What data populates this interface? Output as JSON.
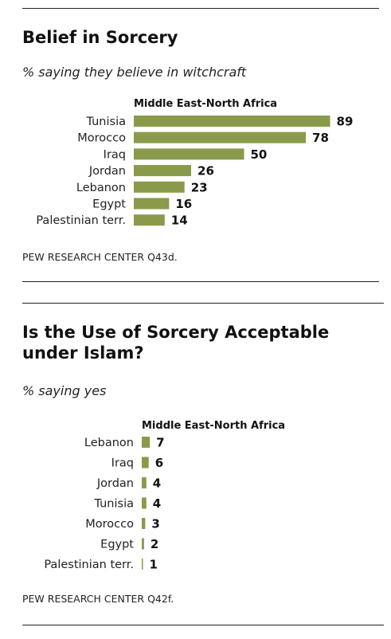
{
  "charts": [
    {
      "title": "Belief in Sorcery",
      "subtitle": "% saying they believe in witchcraft",
      "group_label": "Middle East-North Africa",
      "source": "PEW RESEARCH CENTER Q43d."
    },
    {
      "title": "Is the Use of Sorcery Acceptable under Islam?",
      "subtitle": "% saying yes",
      "group_label": "Middle East-North Africa",
      "source": "PEW RESEARCH CENTER Q42f."
    }
  ],
  "bar_color": "#8a9a4b",
  "chart_data": [
    {
      "type": "bar",
      "orientation": "horizontal",
      "title": "Belief in Sorcery",
      "subtitle": "% saying they believe in witchcraft",
      "categories": [
        "Tunisia",
        "Morocco",
        "Iraq",
        "Jordan",
        "Lebanon",
        "Egypt",
        "Palestinian terr."
      ],
      "values": [
        89,
        78,
        50,
        26,
        23,
        16,
        14
      ],
      "data_labels": [
        "89",
        "78",
        "50",
        "26",
        "23",
        "16",
        "14"
      ],
      "xlim": [
        0,
        100
      ],
      "grid": false,
      "legend": "none"
    },
    {
      "type": "bar",
      "orientation": "horizontal",
      "title": "Is the Use of Sorcery Acceptable under Islam?",
      "subtitle": "% saying yes",
      "categories": [
        "Lebanon",
        "Iraq",
        "Jordan",
        "Tunisia",
        "Morocco",
        "Egypt",
        "Palestinian terr."
      ],
      "values": [
        7,
        6,
        4,
        4,
        3,
        2,
        1
      ],
      "data_labels": [
        "7",
        "6",
        "4",
        "4",
        "3",
        "2",
        "1"
      ],
      "xlim": [
        0,
        100
      ],
      "grid": false,
      "legend": "none"
    }
  ]
}
